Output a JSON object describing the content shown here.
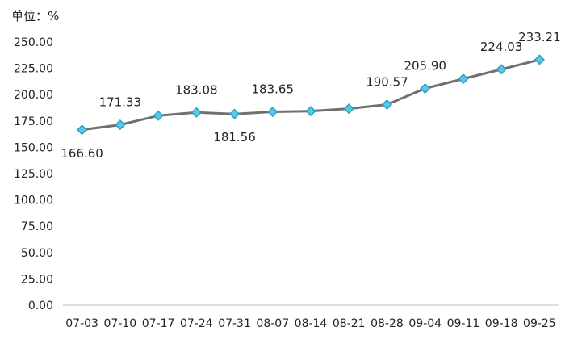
{
  "chart_data": {
    "type": "line",
    "unit_label": "单位：%",
    "categories": [
      "07-03",
      "07-10",
      "07-17",
      "07-24",
      "07-31",
      "08-07",
      "08-14",
      "08-21",
      "08-28",
      "09-04",
      "09-11",
      "09-18",
      "09-25"
    ],
    "series": [
      {
        "values": [
          166.6,
          171.33,
          180.0,
          183.08,
          181.56,
          183.65,
          184.3,
          186.6,
          190.57,
          205.9,
          215.0,
          224.03,
          233.21
        ]
      }
    ],
    "data_labels": [
      {
        "index": 0,
        "text": "166.60",
        "position": "below"
      },
      {
        "index": 1,
        "text": "171.33",
        "position": "above"
      },
      {
        "index": 3,
        "text": "183.08",
        "position": "above"
      },
      {
        "index": 4,
        "text": "181.56",
        "position": "below"
      },
      {
        "index": 5,
        "text": "183.65",
        "position": "above"
      },
      {
        "index": 8,
        "text": "190.57",
        "position": "above"
      },
      {
        "index": 9,
        "text": "205.90",
        "position": "above"
      },
      {
        "index": 11,
        "text": "224.03",
        "position": "above"
      },
      {
        "index": 12,
        "text": "233.21",
        "position": "above"
      }
    ],
    "y_ticks": [
      "0.00",
      "25.00",
      "50.00",
      "75.00",
      "100.00",
      "125.00",
      "150.00",
      "175.00",
      "200.00",
      "225.00",
      "250.00"
    ],
    "ylim": [
      0,
      250
    ],
    "grid": false,
    "colors": {
      "line": "#707070",
      "marker_fill": "#5bc8e6",
      "marker_stroke": "#2aa0c4",
      "axis": "#bfbfbf"
    }
  }
}
